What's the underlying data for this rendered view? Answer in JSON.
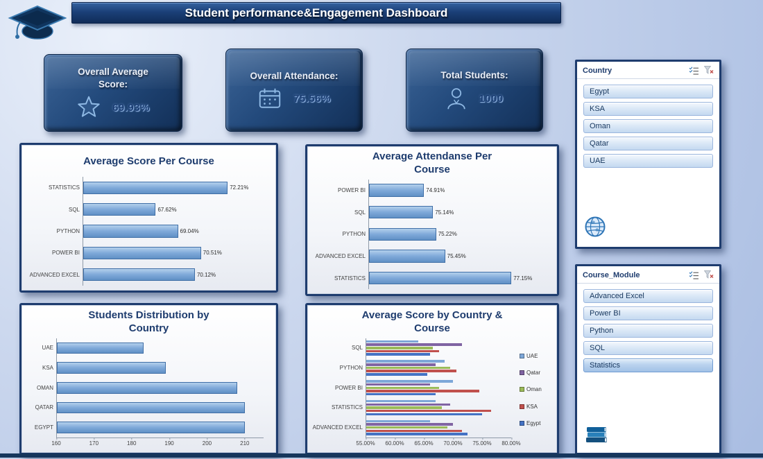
{
  "page": {
    "title": "Student performance&Engagement Dashboard"
  },
  "kpis": [
    {
      "label": "Overall Average Score:",
      "value": "69.93%",
      "icon": "star-icon"
    },
    {
      "label": "Overall Attendance:",
      "value": "75.56%",
      "icon": "calendar-icon"
    },
    {
      "label": "Total Students:",
      "value": "1000",
      "icon": "student-icon"
    }
  ],
  "chart_data": [
    {
      "type": "bar",
      "title": "Average Score Per Course",
      "orientation": "horizontal",
      "categories": [
        "STATISTICS",
        "SQL",
        "PYTHON",
        "POWER BI",
        "ADVANCED EXCEL"
      ],
      "values": [
        72.21,
        67.62,
        69.04,
        70.51,
        70.12
      ],
      "data_labels": [
        "72.21%",
        "67.62%",
        "69.04%",
        "70.51%",
        "70.12%"
      ],
      "xlim": [
        63,
        74.5
      ],
      "grid": false,
      "legend": false,
      "bar_color": "#7ba6d6"
    },
    {
      "type": "bar",
      "title": "Average Attendanse Per Course",
      "orientation": "horizontal",
      "categories": [
        "POWER BI",
        "SQL",
        "PYTHON",
        "ADVANCED EXCEL",
        "STATISTICS"
      ],
      "values": [
        74.91,
        75.14,
        75.22,
        75.45,
        77.15
      ],
      "data_labels": [
        "74.91%",
        "75.14%",
        "75.22%",
        "75.45%",
        "77.15%"
      ],
      "xlim": [
        73.5,
        78
      ],
      "grid": false,
      "legend": false,
      "bar_color": "#7ba6d6"
    },
    {
      "type": "bar",
      "title": "Students Distribution by Country",
      "orientation": "horizontal",
      "categories": [
        "UAE",
        "KSA",
        "OMAN",
        "QATAR",
        "EGYPT"
      ],
      "values": [
        183,
        189,
        208,
        210,
        210
      ],
      "xlim": [
        160,
        215
      ],
      "xticks": [
        160,
        170,
        180,
        190,
        200,
        210
      ],
      "xtick_labels": [
        "160",
        "170",
        "180",
        "190",
        "200",
        "210"
      ],
      "grid": false,
      "legend": false,
      "bar_color": "#7ba6d6"
    },
    {
      "type": "bar",
      "title": "Average Score by Country & Course",
      "orientation": "horizontal",
      "categories": [
        "SQL",
        "PYTHON",
        "POWER BI",
        "STATISTICS",
        "ADVANCED EXCEL"
      ],
      "series": [
        {
          "name": "UAE",
          "color": "#7da7d8",
          "values": [
            64.0,
            68.5,
            70.0,
            67.0,
            66.0
          ]
        },
        {
          "name": "Qatar",
          "color": "#8064a2",
          "values": [
            71.5,
            67.0,
            66.0,
            69.5,
            70.0
          ]
        },
        {
          "name": "Oman",
          "color": "#9bbb59",
          "values": [
            66.5,
            69.5,
            67.5,
            68.0,
            69.0
          ]
        },
        {
          "name": "KSA",
          "color": "#c0504d",
          "values": [
            67.5,
            70.5,
            74.5,
            76.5,
            71.5
          ]
        },
        {
          "name": "Egypt",
          "color": "#4472c4",
          "values": [
            66.0,
            65.5,
            67.0,
            75.0,
            72.5
          ]
        }
      ],
      "xlim": [
        55,
        80
      ],
      "xticks": [
        55,
        60,
        65,
        70,
        75,
        80
      ],
      "xtick_labels": [
        "55.00%",
        "60.00%",
        "65.00%",
        "70.00%",
        "75.00%",
        "80.00%"
      ],
      "grid": false,
      "legend_position": "right"
    }
  ],
  "slicers": [
    {
      "title": "Country",
      "items": [
        "Egypt",
        "KSA",
        "Oman",
        "Qatar",
        "UAE"
      ],
      "footer_icon": "globe-icon"
    },
    {
      "title": "Course_Module",
      "items": [
        "Advanced Excel",
        "Power BI",
        "Python",
        "SQL",
        "Statistics"
      ],
      "highlighted": "Statistics",
      "footer_icon": "books-icon"
    }
  ],
  "colors": {
    "accent_dark_navy": "#1e3c6e",
    "bar_fill": "#7ba6d6",
    "background_top": "#dde6f6",
    "background_bottom": "#a9bde2"
  }
}
